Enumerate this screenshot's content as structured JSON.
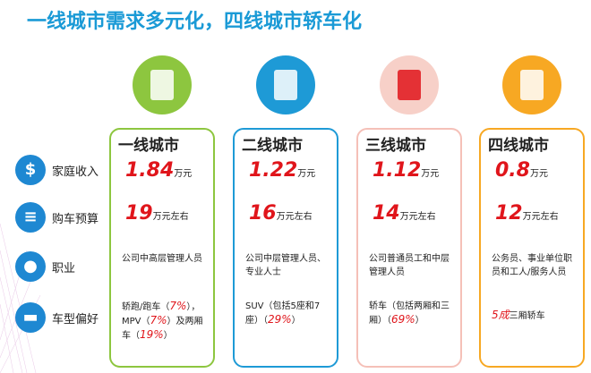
{
  "title": "一线城市需求多元化，四线城市轿车化",
  "row_labels": [
    "家庭收入",
    "购车预算",
    "职业",
    "车型偏好"
  ],
  "columns": [
    {
      "name": "一线城市",
      "income": {
        "value": "1.84",
        "unit": "万元"
      },
      "budget": {
        "value": "19",
        "unit": "万元左右"
      },
      "occupation": "公司中高层管理人员",
      "car": [
        {
          "text": "轿跑/跑车（",
          "emphasis": false
        },
        {
          "text": "7%",
          "emphasis": true
        },
        {
          "text": "），MPV（",
          "emphasis": false
        },
        {
          "text": "7%",
          "emphasis": true
        },
        {
          "text": "）及两厢车（",
          "emphasis": false
        },
        {
          "text": "19%",
          "emphasis": true
        },
        {
          "text": "）",
          "emphasis": false
        }
      ]
    },
    {
      "name": "二线城市",
      "income": {
        "value": "1.22",
        "unit": "万元"
      },
      "budget": {
        "value": "16",
        "unit": "万元左右"
      },
      "occupation": "公司中层管理人员、专业人士",
      "car": [
        {
          "text": "SUV（包括5座和7座）（",
          "emphasis": false
        },
        {
          "text": "29%",
          "emphasis": true
        },
        {
          "text": "）",
          "emphasis": false
        }
      ]
    },
    {
      "name": "三线城市",
      "income": {
        "value": "1.12",
        "unit": "万元"
      },
      "budget": {
        "value": "14",
        "unit": "万元左右"
      },
      "occupation": "公司普通员工和中层管理人员",
      "car": [
        {
          "text": "轿车（包括两厢和三厢）（",
          "emphasis": false
        },
        {
          "text": "69%",
          "emphasis": true
        },
        {
          "text": "）",
          "emphasis": false
        }
      ]
    },
    {
      "name": "四线城市",
      "income": {
        "value": "0.8",
        "unit": "万元"
      },
      "budget": {
        "value": "12",
        "unit": "万元左右"
      },
      "occupation": "公务员、事业单位职员和工人/服务人员",
      "car": [
        {
          "text": "5成",
          "emphasis": true
        },
        {
          "text": "三厢轿车",
          "emphasis": false
        }
      ]
    }
  ]
}
